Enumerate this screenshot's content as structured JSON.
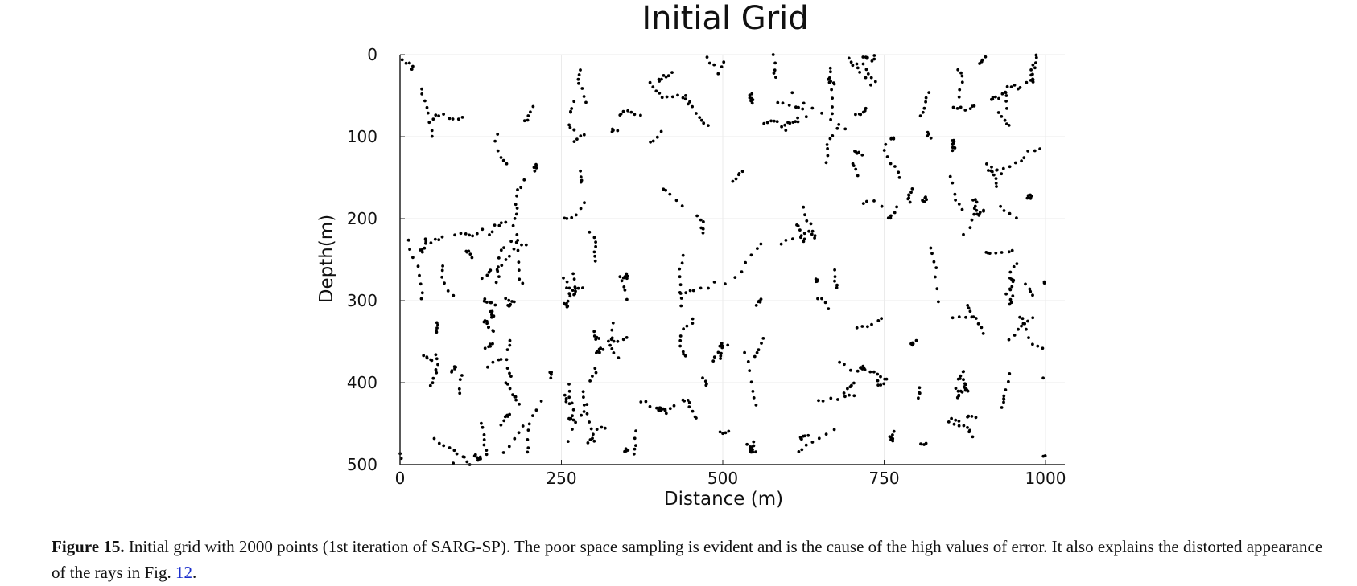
{
  "chart_data": {
    "type": "scatter",
    "title": "Initial Grid",
    "xlabel": "Distance (m)",
    "ylabel": "Depth(m)",
    "xlim": [
      0,
      1000
    ],
    "ylim": [
      0,
      500
    ],
    "y_inverted": true,
    "x_ticks": [
      "0",
      "250",
      "500",
      "750",
      "1000"
    ],
    "y_ticks": [
      "0",
      "100",
      "200",
      "300",
      "400",
      "500"
    ],
    "grid": true,
    "point_color": "#000000",
    "n_points": 2000
  },
  "caption": {
    "label": "Figure 15.",
    "text": "Initial grid with 2000 points (1st iteration of SARG-SP). The poor space sampling is evident and is the cause of the high values of error. It also explains the distorted appearance of the rays in Fig.",
    "ref": "12",
    "end": "."
  }
}
